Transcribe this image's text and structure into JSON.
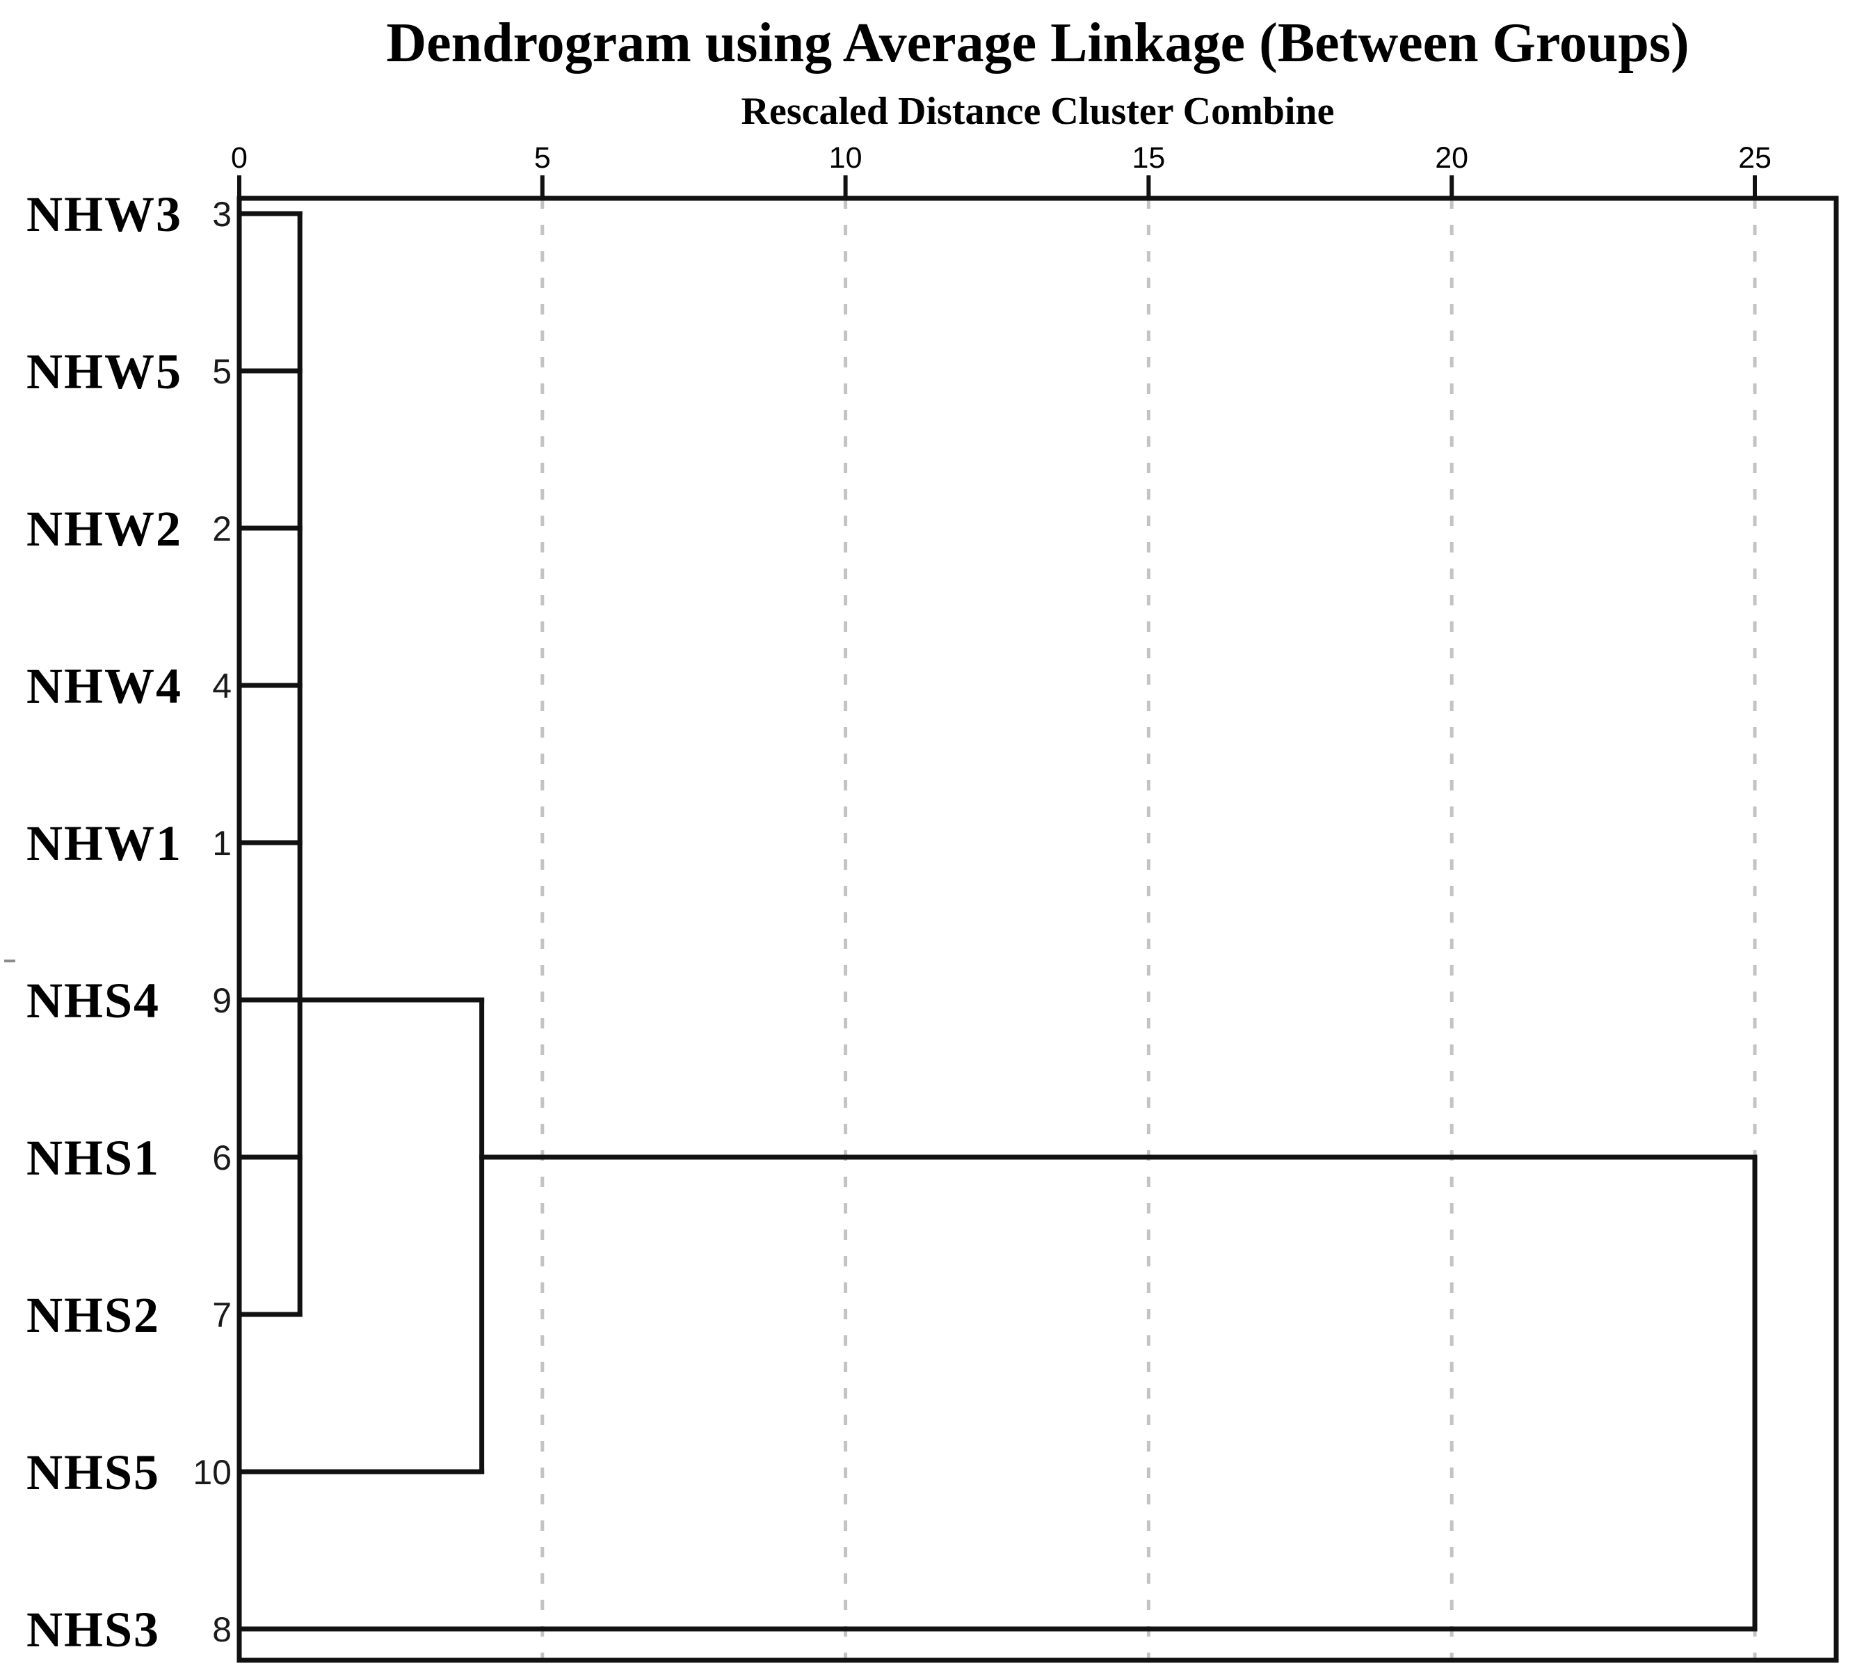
{
  "page": {
    "background": "#ffffff"
  },
  "header": {
    "title": "Dendrogram using Average Linkage (Between Groups)",
    "subtitle": "Rescaled Distance Cluster Combine"
  },
  "chart_data": {
    "type": "dendrogram",
    "orientation": "horizontal_leaves_on_left",
    "title": "Dendrogram using Average Linkage (Between Groups)",
    "subtitle": "Rescaled Distance Cluster Combine",
    "x_axis": {
      "ticks": [
        0,
        5,
        10,
        15,
        20,
        25
      ],
      "min": 0,
      "max": 25,
      "axis_position": "top",
      "gridline_style": "dashed"
    },
    "leaves": [
      {
        "label": "NHW3",
        "case_number": "3",
        "stub_to_distance": 1
      },
      {
        "label": "NHW5",
        "case_number": "5",
        "stub_to_distance": 1
      },
      {
        "label": "NHW2",
        "case_number": "2",
        "stub_to_distance": 1
      },
      {
        "label": "NHW4",
        "case_number": "4",
        "stub_to_distance": 1
      },
      {
        "label": "NHW1",
        "case_number": "1",
        "stub_to_distance": 1
      },
      {
        "label": "NHS4",
        "case_number": "9",
        "stub_to_distance": 4
      },
      {
        "label": "NHS1",
        "case_number": "6",
        "stub_to_distance": 1
      },
      {
        "label": "NHS2",
        "case_number": "7",
        "stub_to_distance": 1
      },
      {
        "label": "NHS5",
        "case_number": "10",
        "stub_to_distance": 4
      },
      {
        "label": "NHS3",
        "case_number": "8",
        "stub_to_distance": 25
      }
    ],
    "merges": [
      {
        "kind": "vertical",
        "distance": 1,
        "top_leaf": "NHW3",
        "bottom_leaf": "NHS2"
      },
      {
        "kind": "vertical",
        "distance": 4,
        "top_leaf": "NHS4",
        "bottom_leaf": "NHS5"
      },
      {
        "kind": "vertical",
        "distance": 25,
        "top_leaf": "NHS1",
        "bottom_leaf": "NHS3"
      },
      {
        "kind": "horizontal",
        "leaf_row": "NHS1",
        "from_distance": 4,
        "to_distance": 25
      }
    ],
    "colors": {
      "line": "#111111",
      "grid": "#c3c3c3",
      "text": "#000000"
    }
  }
}
